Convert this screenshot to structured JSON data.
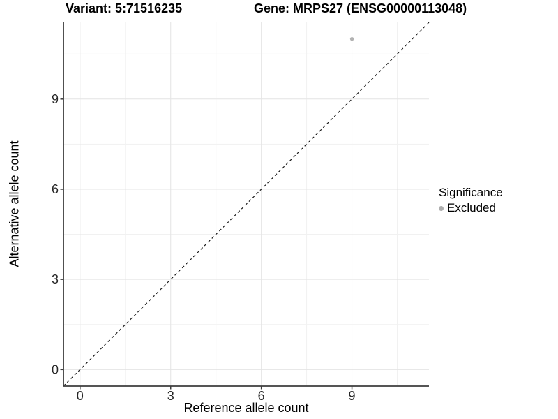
{
  "chart_data": {
    "type": "scatter",
    "titles": [
      "Variant: 5:71516235",
      "Gene: MRPS27 (ENSG00000113048)"
    ],
    "xlabel": "Reference allele count",
    "ylabel": "Alternative allele count",
    "xlim": [
      -0.55,
      11.55
    ],
    "ylim": [
      -0.55,
      11.55
    ],
    "xticks": [
      0,
      3,
      6,
      9
    ],
    "yticks": [
      0,
      3,
      6,
      9
    ],
    "minor_breaks": [
      1.5,
      4.5,
      7.5,
      10.5
    ],
    "grid": true,
    "series": [
      {
        "name": "Excluded",
        "marker": "circle",
        "color": "#b2b2b2",
        "points": [
          {
            "x": 9,
            "y": 11
          }
        ]
      }
    ],
    "reference_line": {
      "type": "identity",
      "style": "dashed",
      "from": [
        -0.55,
        -0.55
      ],
      "to": [
        11.55,
        11.55
      ],
      "color": "#1a1a1a"
    },
    "legend": {
      "title": "Significance",
      "position": "right",
      "items": [
        {
          "label": "Excluded",
          "color": "#aeaeae",
          "marker": "circle"
        }
      ]
    }
  },
  "colors": {
    "background": "#ffffff",
    "grid_major": "#e4e4e4",
    "grid_minor": "#f1f1f1",
    "axis_line": "#3d3d3d",
    "axis_text": "#262626",
    "title_text": "#000000"
  }
}
